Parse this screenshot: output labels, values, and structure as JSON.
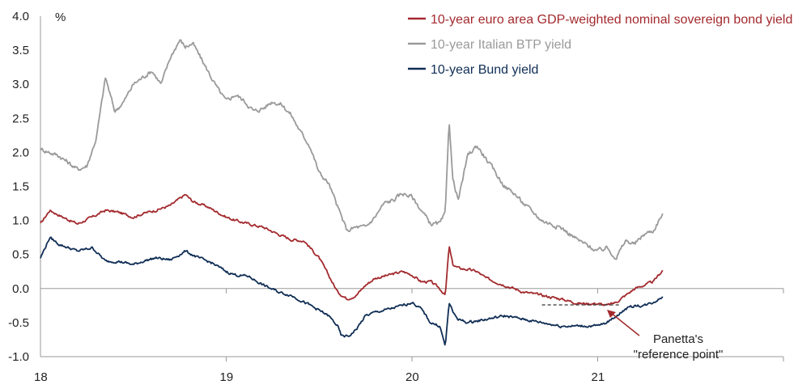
{
  "chart_data": {
    "type": "line",
    "title": "",
    "ylabel": "%",
    "xlabel": "",
    "ylim": [
      -1.0,
      4.0
    ],
    "yticks": [
      "4.0",
      "3.5",
      "3.0",
      "2.5",
      "2.0",
      "1.5",
      "1.0",
      "0.5",
      "0.0",
      "-0.5",
      "-1.0"
    ],
    "ytick_values": [
      4.0,
      3.5,
      3.0,
      2.5,
      2.0,
      1.5,
      1.0,
      0.5,
      0.0,
      -0.5,
      -1.0
    ],
    "xlim": [
      2018.0,
      2022.0
    ],
    "xticks": [
      "18",
      "19",
      "20",
      "21"
    ],
    "xtick_values": [
      2018.0,
      2019.0,
      2020.0,
      2021.0
    ],
    "legend_position": "top-right",
    "series": [
      {
        "name": "10-year euro area GDP-weighted nominal sovereign bond yield",
        "color": "#a32a2e",
        "x": [
          2018.0,
          2018.05,
          2018.12,
          2018.2,
          2018.28,
          2018.35,
          2018.42,
          2018.5,
          2018.55,
          2018.62,
          2018.7,
          2018.78,
          2018.82,
          2018.9,
          2019.0,
          2019.05,
          2019.12,
          2019.2,
          2019.28,
          2019.35,
          2019.42,
          2019.5,
          2019.55,
          2019.6,
          2019.65,
          2019.7,
          2019.75,
          2019.8,
          2019.88,
          2019.95,
          2020.0,
          2020.05,
          2020.1,
          2020.15,
          2020.18,
          2020.2,
          2020.22,
          2020.25,
          2020.3,
          2020.35,
          2020.4,
          2020.5,
          2020.6,
          2020.7,
          2020.8,
          2020.9,
          2021.0,
          2021.05,
          2021.1,
          2021.15,
          2021.2,
          2021.25,
          2021.3,
          2021.35
        ],
        "values": [
          0.95,
          1.15,
          1.05,
          0.95,
          1.05,
          1.15,
          1.12,
          1.05,
          1.1,
          1.15,
          1.22,
          1.38,
          1.28,
          1.2,
          1.05,
          1.0,
          0.95,
          0.9,
          0.8,
          0.72,
          0.7,
          0.45,
          0.2,
          -0.05,
          -0.15,
          -0.1,
          0.05,
          0.15,
          0.2,
          0.25,
          0.2,
          0.1,
          0.1,
          0.0,
          -0.1,
          0.62,
          0.35,
          0.3,
          0.28,
          0.25,
          0.15,
          0.05,
          -0.05,
          -0.1,
          -0.15,
          -0.22,
          -0.22,
          -0.25,
          -0.2,
          -0.1,
          0.0,
          0.05,
          0.1,
          0.27
        ]
      },
      {
        "name": "10-year Italian BTP yield",
        "color": "#9a9a9a",
        "x": [
          2018.0,
          2018.05,
          2018.1,
          2018.15,
          2018.2,
          2018.25,
          2018.3,
          2018.35,
          2018.38,
          2018.4,
          2018.45,
          2018.5,
          2018.55,
          2018.6,
          2018.65,
          2018.7,
          2018.75,
          2018.78,
          2018.82,
          2018.88,
          2018.95,
          2019.0,
          2019.05,
          2019.1,
          2019.15,
          2019.2,
          2019.25,
          2019.3,
          2019.35,
          2019.4,
          2019.45,
          2019.5,
          2019.55,
          2019.6,
          2019.65,
          2019.7,
          2019.75,
          2019.8,
          2019.85,
          2019.9,
          2019.95,
          2020.0,
          2020.05,
          2020.1,
          2020.15,
          2020.18,
          2020.2,
          2020.22,
          2020.25,
          2020.3,
          2020.35,
          2020.4,
          2020.45,
          2020.5,
          2020.55,
          2020.6,
          2020.7,
          2020.8,
          2020.9,
          2021.0,
          2021.05,
          2021.1,
          2021.15,
          2021.2,
          2021.25,
          2021.3,
          2021.35
        ],
        "values": [
          2.05,
          2.0,
          1.95,
          1.85,
          1.75,
          1.8,
          2.2,
          3.1,
          2.8,
          2.6,
          2.75,
          3.0,
          3.1,
          3.2,
          3.0,
          3.4,
          3.65,
          3.55,
          3.6,
          3.3,
          2.95,
          2.75,
          2.85,
          2.75,
          2.6,
          2.65,
          2.75,
          2.7,
          2.55,
          2.3,
          2.1,
          1.7,
          1.55,
          1.2,
          0.85,
          0.9,
          0.9,
          1.05,
          1.25,
          1.3,
          1.4,
          1.35,
          1.15,
          0.95,
          0.95,
          1.1,
          2.5,
          1.6,
          1.3,
          1.95,
          2.1,
          1.9,
          1.7,
          1.5,
          1.4,
          1.25,
          1.0,
          0.9,
          0.7,
          0.55,
          0.6,
          0.45,
          0.7,
          0.65,
          0.8,
          0.85,
          1.1
        ]
      },
      {
        "name": "10-year Bund yield",
        "color": "#102e55",
        "x": [
          2018.0,
          2018.05,
          2018.1,
          2018.15,
          2018.2,
          2018.28,
          2018.35,
          2018.42,
          2018.5,
          2018.55,
          2018.62,
          2018.7,
          2018.78,
          2018.85,
          2018.92,
          2019.0,
          2019.05,
          2019.12,
          2019.2,
          2019.28,
          2019.35,
          2019.42,
          2019.5,
          2019.55,
          2019.6,
          2019.62,
          2019.66,
          2019.7,
          2019.75,
          2019.8,
          2019.88,
          2019.95,
          2020.0,
          2020.05,
          2020.1,
          2020.15,
          2020.18,
          2020.2,
          2020.22,
          2020.25,
          2020.3,
          2020.4,
          2020.5,
          2020.6,
          2020.7,
          2020.8,
          2020.9,
          2021.0,
          2021.05,
          2021.1,
          2021.15,
          2021.2,
          2021.25,
          2021.3,
          2021.35
        ],
        "values": [
          0.45,
          0.75,
          0.65,
          0.6,
          0.55,
          0.6,
          0.4,
          0.4,
          0.35,
          0.4,
          0.45,
          0.42,
          0.55,
          0.45,
          0.38,
          0.25,
          0.2,
          0.18,
          0.05,
          -0.05,
          -0.1,
          -0.2,
          -0.32,
          -0.4,
          -0.55,
          -0.7,
          -0.7,
          -0.6,
          -0.4,
          -0.35,
          -0.3,
          -0.25,
          -0.2,
          -0.3,
          -0.5,
          -0.55,
          -0.85,
          -0.2,
          -0.35,
          -0.45,
          -0.5,
          -0.45,
          -0.4,
          -0.45,
          -0.5,
          -0.55,
          -0.55,
          -0.55,
          -0.5,
          -0.4,
          -0.3,
          -0.25,
          -0.25,
          -0.2,
          -0.12
        ]
      }
    ],
    "annotations": [
      {
        "text_lines": [
          "Panetta's",
          "\"reference point\""
        ],
        "reference_value": -0.24,
        "x_range": [
          2020.7,
          2021.12
        ],
        "arrow_target_x": 2021.05,
        "style": "dashed"
      }
    ]
  }
}
